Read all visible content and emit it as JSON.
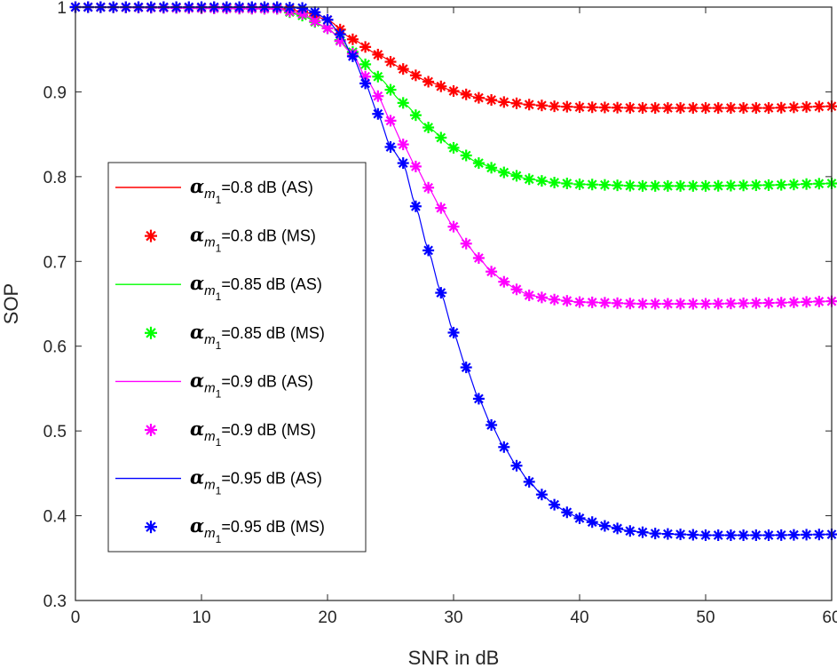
{
  "chart_data": {
    "type": "line",
    "title": "",
    "xlabel": "SNR in dB",
    "ylabel": "SOP",
    "xlim": [
      0,
      60
    ],
    "ylim": [
      0.3,
      1
    ],
    "xticks": [
      0,
      10,
      20,
      30,
      40,
      50,
      60
    ],
    "xtick_labels": [
      "0",
      "10",
      "20",
      "30",
      "40",
      "50",
      "60"
    ],
    "yticks": [
      0.3,
      0.4,
      0.5,
      0.6,
      0.7,
      0.8,
      0.9,
      1.0
    ],
    "ytick_labels": [
      "0.3",
      "0.4",
      "0.5",
      "0.6",
      "0.7",
      "0.8",
      "0.9",
      "1"
    ],
    "grid": false,
    "legend_position": "center-left",
    "marker_x": [
      0,
      1,
      2,
      3,
      4,
      5,
      6,
      7,
      8,
      9,
      10,
      11,
      12,
      13,
      14,
      15,
      16,
      17,
      18,
      19,
      20,
      21,
      22,
      23,
      24,
      25,
      26,
      27,
      28,
      29,
      30,
      31,
      32,
      33,
      34,
      35,
      36,
      37,
      38,
      39,
      40,
      41,
      42,
      43,
      44,
      45,
      46,
      47,
      48,
      49,
      50,
      51,
      52,
      53,
      54,
      55,
      56,
      57,
      58,
      59,
      60
    ],
    "series": [
      {
        "name": "0.8 dB",
        "color": "#ff0000",
        "legend_symbol": "α",
        "legend_sub": "m",
        "legend_subsub": "1",
        "legend_as": "=0.8 dB (AS)",
        "legend_ms": "=0.8 dB (MS)",
        "points": [
          [
            0,
            1.0
          ],
          [
            16,
            0.999
          ],
          [
            18,
            0.995
          ],
          [
            20,
            0.985
          ],
          [
            22,
            0.962
          ],
          [
            24,
            0.944
          ],
          [
            26,
            0.927
          ],
          [
            28,
            0.912
          ],
          [
            30,
            0.901
          ],
          [
            32,
            0.893
          ],
          [
            34,
            0.888
          ],
          [
            36,
            0.885
          ],
          [
            38,
            0.883
          ],
          [
            40,
            0.882
          ],
          [
            45,
            0.881
          ],
          [
            50,
            0.881
          ],
          [
            55,
            0.881
          ],
          [
            60,
            0.883
          ]
        ]
      },
      {
        "name": "0.85 dB",
        "color": "#00ff00",
        "legend_symbol": "α",
        "legend_sub": "m",
        "legend_subsub": "1",
        "legend_as": "=0.85 dB (AS)",
        "legend_ms": "=0.85 dB (MS)",
        "points": [
          [
            0,
            1.0
          ],
          [
            16,
            0.998
          ],
          [
            18,
            0.99
          ],
          [
            20,
            0.975
          ],
          [
            22,
            0.947
          ],
          [
            24,
            0.918
          ],
          [
            26,
            0.887
          ],
          [
            28,
            0.858
          ],
          [
            30,
            0.834
          ],
          [
            32,
            0.816
          ],
          [
            34,
            0.805
          ],
          [
            36,
            0.797
          ],
          [
            38,
            0.793
          ],
          [
            40,
            0.791
          ],
          [
            45,
            0.789
          ],
          [
            50,
            0.789
          ],
          [
            55,
            0.79
          ],
          [
            60,
            0.792
          ]
        ]
      },
      {
        "name": "0.9 dB",
        "color": "#ff00ff",
        "legend_symbol": "α",
        "legend_sub": "m",
        "legend_subsub": "1",
        "legend_as": "=0.9 dB (AS)",
        "legend_ms": "=0.9 dB (MS)",
        "points": [
          [
            0,
            1.0
          ],
          [
            16,
            0.998
          ],
          [
            18,
            0.992
          ],
          [
            20,
            0.975
          ],
          [
            22,
            0.945
          ],
          [
            23,
            0.918
          ],
          [
            24,
            0.895
          ],
          [
            25,
            0.866
          ],
          [
            26,
            0.838
          ],
          [
            27,
            0.812
          ],
          [
            28,
            0.787
          ],
          [
            29,
            0.763
          ],
          [
            30,
            0.741
          ],
          [
            31,
            0.721
          ],
          [
            32,
            0.704
          ],
          [
            33,
            0.688
          ],
          [
            34,
            0.676
          ],
          [
            35,
            0.667
          ],
          [
            36,
            0.66
          ],
          [
            38,
            0.655
          ],
          [
            40,
            0.652
          ],
          [
            45,
            0.65
          ],
          [
            50,
            0.65
          ],
          [
            55,
            0.651
          ],
          [
            60,
            0.653
          ]
        ]
      },
      {
        "name": "0.95 dB",
        "color": "#0000ff",
        "legend_symbol": "α",
        "legend_sub": "m",
        "legend_subsub": "1",
        "legend_as": "=0.95 dB (AS)",
        "legend_ms": "=0.95 dB (MS)",
        "points": [
          [
            0,
            1.0
          ],
          [
            16,
            1.0
          ],
          [
            18,
            0.999
          ],
          [
            19,
            0.994
          ],
          [
            20,
            0.985
          ],
          [
            21,
            0.968
          ],
          [
            22,
            0.942
          ],
          [
            23,
            0.91
          ],
          [
            24,
            0.874
          ],
          [
            25,
            0.835
          ],
          [
            26,
            0.816
          ],
          [
            27,
            0.765
          ],
          [
            28,
            0.713
          ],
          [
            29,
            0.663
          ],
          [
            30,
            0.616
          ],
          [
            31,
            0.575
          ],
          [
            32,
            0.538
          ],
          [
            33,
            0.507
          ],
          [
            34,
            0.481
          ],
          [
            35,
            0.459
          ],
          [
            36,
            0.44
          ],
          [
            37,
            0.425
          ],
          [
            38,
            0.413
          ],
          [
            39,
            0.404
          ],
          [
            40,
            0.397
          ],
          [
            42,
            0.388
          ],
          [
            44,
            0.382
          ],
          [
            46,
            0.379
          ],
          [
            48,
            0.378
          ],
          [
            50,
            0.377
          ],
          [
            55,
            0.377
          ],
          [
            60,
            0.378
          ]
        ]
      }
    ]
  }
}
